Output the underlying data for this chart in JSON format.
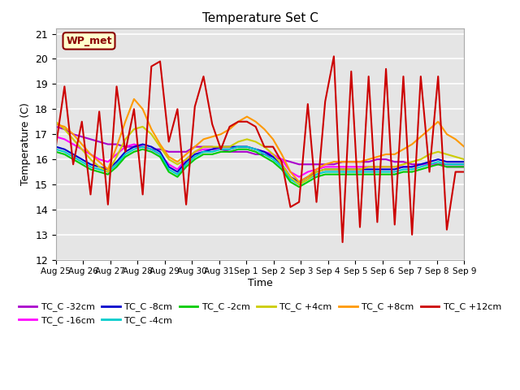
{
  "title": "Temperature Set C",
  "xlabel": "Time",
  "ylabel": "Temperature (C)",
  "ylim": [
    12.0,
    21.2
  ],
  "yticks": [
    12.0,
    13.0,
    14.0,
    15.0,
    16.0,
    17.0,
    18.0,
    19.0,
    20.0,
    21.0
  ],
  "background_color": "#ffffff",
  "plot_bg_color": "#e5e5e5",
  "annotation_text": "WP_met",
  "annotation_bg": "#ffffcc",
  "annotation_border": "#8b0000",
  "x_labels": [
    "Aug 25",
    "Aug 26",
    "Aug 27",
    "Aug 28",
    "Aug 29",
    "Aug 30",
    "Aug 31",
    "Sep 1",
    "Sep 2",
    "Sep 3",
    "Sep 4",
    "Sep 5",
    "Sep 6",
    "Sep 7",
    "Sep 8",
    "Sep 9"
  ],
  "series": [
    {
      "label": "TC_C -32cm",
      "color": "#aa00cc",
      "lw": 1.5,
      "values": [
        17.3,
        17.2,
        17.0,
        16.9,
        16.8,
        16.7,
        16.6,
        16.6,
        16.5,
        16.5,
        16.5,
        16.4,
        16.4,
        16.3,
        16.3,
        16.3,
        16.5,
        16.5,
        16.5,
        16.4,
        16.3,
        16.3,
        16.3,
        16.2,
        16.2,
        16.1,
        16.0,
        15.9,
        15.8,
        15.8,
        15.8,
        15.8,
        15.8,
        15.9,
        15.9,
        15.9,
        15.9,
        16.0,
        16.0,
        15.9,
        15.9,
        15.8,
        15.8,
        15.8,
        15.8,
        15.8,
        15.8,
        15.8
      ]
    },
    {
      "label": "TC_C -16cm",
      "color": "#ff00ff",
      "lw": 1.5,
      "values": [
        16.9,
        16.8,
        16.6,
        16.4,
        16.2,
        16.0,
        15.9,
        16.2,
        16.5,
        16.6,
        16.5,
        16.4,
        16.2,
        15.8,
        15.6,
        16.0,
        16.3,
        16.4,
        16.4,
        16.4,
        16.4,
        16.5,
        16.5,
        16.4,
        16.3,
        16.2,
        16.0,
        15.5,
        15.3,
        15.5,
        15.6,
        15.7,
        15.7,
        15.7,
        15.7,
        15.7,
        15.7,
        15.7,
        15.7,
        15.7,
        15.7,
        15.7,
        15.8,
        15.8,
        15.8,
        15.7,
        15.7,
        15.7
      ]
    },
    {
      "label": "TC_C -8cm",
      "color": "#0000cc",
      "lw": 1.5,
      "values": [
        16.5,
        16.4,
        16.2,
        16.0,
        15.8,
        15.7,
        15.6,
        15.9,
        16.3,
        16.5,
        16.6,
        16.5,
        16.3,
        15.7,
        15.5,
        15.9,
        16.2,
        16.3,
        16.4,
        16.5,
        16.5,
        16.5,
        16.5,
        16.4,
        16.3,
        16.1,
        15.8,
        15.3,
        15.1,
        15.3,
        15.5,
        15.6,
        15.6,
        15.6,
        15.6,
        15.6,
        15.6,
        15.6,
        15.6,
        15.6,
        15.7,
        15.7,
        15.8,
        15.9,
        16.0,
        15.9,
        15.9,
        15.9
      ]
    },
    {
      "label": "TC_C -4cm",
      "color": "#00cccc",
      "lw": 1.5,
      "values": [
        16.4,
        16.3,
        16.1,
        15.9,
        15.7,
        15.6,
        15.5,
        15.8,
        16.2,
        16.4,
        16.5,
        16.4,
        16.2,
        15.6,
        15.4,
        15.8,
        16.1,
        16.3,
        16.3,
        16.4,
        16.4,
        16.5,
        16.5,
        16.4,
        16.2,
        16.0,
        15.7,
        15.2,
        15.0,
        15.2,
        15.4,
        15.5,
        15.5,
        15.5,
        15.5,
        15.5,
        15.5,
        15.5,
        15.5,
        15.5,
        15.6,
        15.6,
        15.7,
        15.8,
        15.9,
        15.8,
        15.8,
        15.8
      ]
    },
    {
      "label": "TC_C -2cm",
      "color": "#00cc00",
      "lw": 1.5,
      "values": [
        16.3,
        16.2,
        16.0,
        15.8,
        15.6,
        15.5,
        15.4,
        15.7,
        16.1,
        16.3,
        16.4,
        16.3,
        16.1,
        15.5,
        15.3,
        15.7,
        16.0,
        16.2,
        16.2,
        16.3,
        16.3,
        16.4,
        16.4,
        16.3,
        16.1,
        15.9,
        15.6,
        15.1,
        14.9,
        15.1,
        15.3,
        15.4,
        15.4,
        15.4,
        15.4,
        15.4,
        15.4,
        15.4,
        15.4,
        15.4,
        15.5,
        15.5,
        15.6,
        15.7,
        15.8,
        15.7,
        15.7,
        15.7
      ]
    },
    {
      "label": "TC_C +4cm",
      "color": "#cccc00",
      "lw": 1.5,
      "values": [
        17.5,
        17.2,
        16.8,
        16.4,
        16.0,
        15.7,
        15.5,
        16.1,
        16.8,
        17.2,
        17.3,
        17.0,
        16.5,
        16.0,
        15.8,
        16.0,
        16.3,
        16.5,
        16.5,
        16.5,
        16.5,
        16.7,
        16.8,
        16.7,
        16.5,
        16.2,
        15.8,
        15.3,
        15.0,
        15.2,
        15.5,
        15.6,
        15.6,
        15.6,
        15.6,
        15.6,
        15.7,
        15.7,
        15.7,
        15.7,
        15.8,
        15.9,
        16.0,
        16.2,
        16.3,
        16.2,
        16.1,
        16.0
      ]
    },
    {
      "label": "TC_C +8cm",
      "color": "#ff9900",
      "lw": 1.5,
      "values": [
        17.4,
        17.3,
        17.0,
        16.6,
        16.2,
        15.9,
        15.6,
        16.5,
        17.5,
        18.4,
        18.0,
        17.2,
        16.6,
        16.1,
        15.9,
        16.2,
        16.5,
        16.8,
        16.9,
        17.0,
        17.2,
        17.5,
        17.7,
        17.5,
        17.2,
        16.8,
        16.2,
        15.5,
        15.1,
        15.3,
        15.6,
        15.8,
        15.9,
        15.9,
        15.9,
        15.9,
        16.0,
        16.1,
        16.2,
        16.2,
        16.4,
        16.6,
        16.9,
        17.2,
        17.5,
        17.0,
        16.8,
        16.5
      ]
    },
    {
      "label": "TC_C +12cm",
      "color": "#cc0000",
      "lw": 1.5,
      "values": [
        16.5,
        18.9,
        15.8,
        17.5,
        14.6,
        17.9,
        14.2,
        18.9,
        16.3,
        18.0,
        14.6,
        19.7,
        19.9,
        16.7,
        18.0,
        14.2,
        18.1,
        19.3,
        17.4,
        16.4,
        17.3,
        17.5,
        17.5,
        17.3,
        16.5,
        16.5,
        15.9,
        14.1,
        14.3,
        18.2,
        14.3,
        18.3,
        20.1,
        12.7,
        19.5,
        13.3,
        19.3,
        13.5,
        19.6,
        13.4,
        19.3,
        13.0,
        19.3,
        15.5,
        19.3,
        13.2,
        15.5,
        15.5
      ]
    }
  ]
}
